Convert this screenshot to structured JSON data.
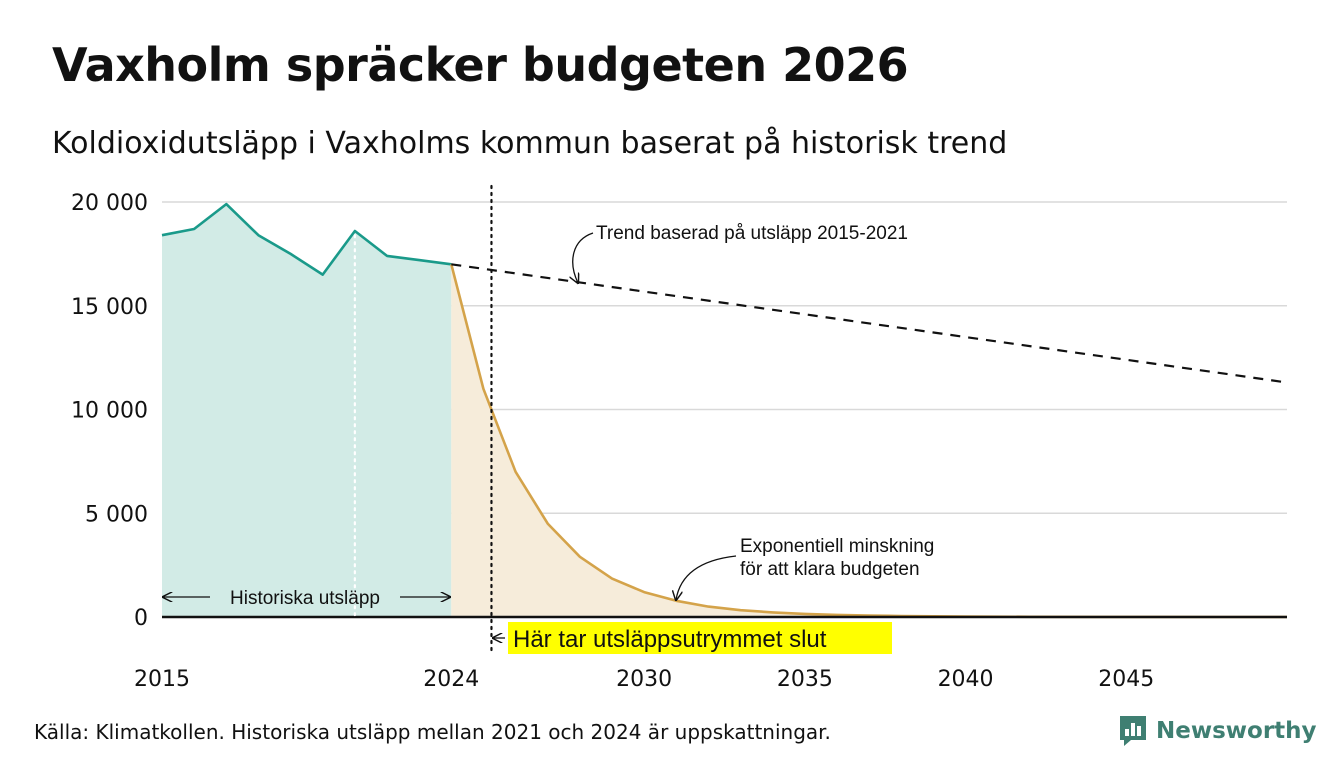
{
  "header": {
    "title": "Vaxholm spräcker budgeten 2026",
    "subtitle": "Koldioxidutsläpp i Vaxholms kommun baserat på historisk trend"
  },
  "chart_data": {
    "type": "area",
    "ylim": [
      0,
      20000
    ],
    "xlim": [
      2015,
      2050
    ],
    "yticks": [
      {
        "value": 0,
        "label": "0"
      },
      {
        "value": 5000,
        "label": "5 000"
      },
      {
        "value": 10000,
        "label": "10 000"
      },
      {
        "value": 15000,
        "label": "15 000"
      },
      {
        "value": 20000,
        "label": "20 000"
      }
    ],
    "xticks": [
      {
        "value": 2015,
        "label": "2015"
      },
      {
        "value": 2024,
        "label": "2024"
      },
      {
        "value": 2030,
        "label": "2030"
      },
      {
        "value": 2035,
        "label": "2035"
      },
      {
        "value": 2040,
        "label": "2040"
      },
      {
        "value": 2045,
        "label": "2045"
      }
    ],
    "grid": true,
    "series": [
      {
        "name": "Historiska utsläpp",
        "color": "#1a9a8a",
        "fill": "#d2ebe6",
        "x": [
          2015,
          2016,
          2017,
          2018,
          2019,
          2020,
          2021,
          2022,
          2023,
          2024
        ],
        "y": [
          18400,
          18700,
          19900,
          18400,
          17500,
          16500,
          18600,
          17400,
          17200,
          17000
        ]
      },
      {
        "name": "Exponentiell minskning för att klara budgeten",
        "color": "#d4a34a",
        "fill": "#f6ecda",
        "x": [
          2024,
          2025,
          2026,
          2027,
          2028,
          2029,
          2030,
          2031,
          2032,
          2033,
          2034,
          2035,
          2036,
          2037,
          2038,
          2039,
          2040,
          2042,
          2044,
          2046,
          2048,
          2050
        ],
        "y": [
          17000,
          11000,
          7000,
          4500,
          2900,
          1850,
          1200,
          780,
          500,
          330,
          220,
          150,
          100,
          70,
          50,
          35,
          25,
          12,
          6,
          3,
          1,
          0
        ]
      },
      {
        "name": "Trend baserad på utsläpp 2015-2021",
        "color": "#111111",
        "dashed": true,
        "x": [
          2024,
          2050
        ],
        "y": [
          17000,
          11300
        ]
      }
    ],
    "markers": [
      {
        "type": "dotted-vline",
        "x": 2025.25,
        "color": "#111111"
      },
      {
        "type": "dotted-vline",
        "x": 2021,
        "color": "#ffffff"
      }
    ],
    "annotations": {
      "trend_label": "Trend baserad på utsläpp 2015-2021",
      "decline_label_line1": "Exponentiell minskning",
      "decline_label_line2": "för att klara budgeten",
      "history_label": "Historiska utsläpp",
      "end_label": "Här tar utsläppsutrymmet slut",
      "end_label_bg": "#ffff00"
    }
  },
  "footer": {
    "source": "Källa: Klimatkollen. Historiska utsläpp mellan 2021 och 2024 är uppskattningar.",
    "brand": "Newsworthy",
    "brand_color": "#3f7f72"
  }
}
